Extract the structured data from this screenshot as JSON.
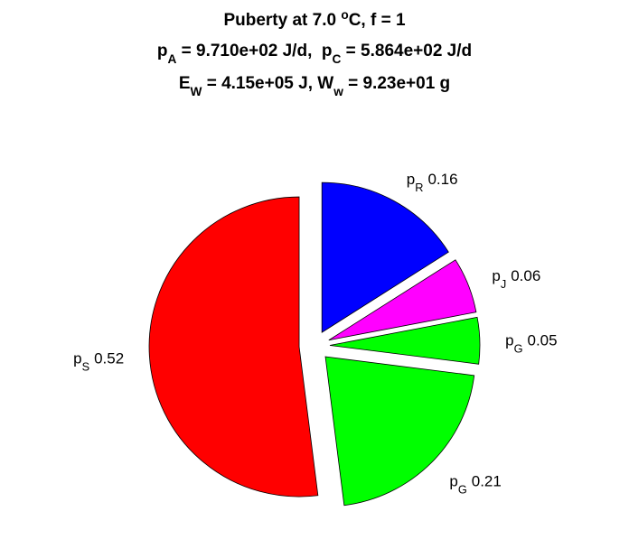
{
  "chart_data": {
    "type": "pie",
    "title": [
      [
        {
          "text": "Puberty at 7.0 "
        },
        {
          "sup": "o"
        },
        {
          "text": "C, f = 1"
        }
      ],
      [
        {
          "text": "p"
        },
        {
          "sub": "A"
        },
        {
          "text": " = 9.710e+02 J/d,  p"
        },
        {
          "sub": "C"
        },
        {
          "text": " = 5.864e+02 J/d"
        }
      ],
      [
        {
          "text": "E"
        },
        {
          "sub": "W"
        },
        {
          "text": " = 4.15e+05 J, W"
        },
        {
          "sub": "w"
        },
        {
          "text": " = 9.23e+01 g"
        }
      ]
    ],
    "labels": [
      {
        "text": "p",
        "sub": "R"
      },
      {
        "text": "p",
        "sub": "J"
      },
      {
        "text": "p",
        "sub": "G"
      },
      {
        "text": "p",
        "sub": "G"
      },
      {
        "text": "p",
        "sub": "S"
      }
    ],
    "values": [
      0.16,
      0.06,
      0.05,
      0.21,
      0.52
    ],
    "colors": [
      "#0000ff",
      "#ff00ff",
      "#00ff00",
      "#00ff00",
      "#ff0000"
    ],
    "exploded": true
  }
}
